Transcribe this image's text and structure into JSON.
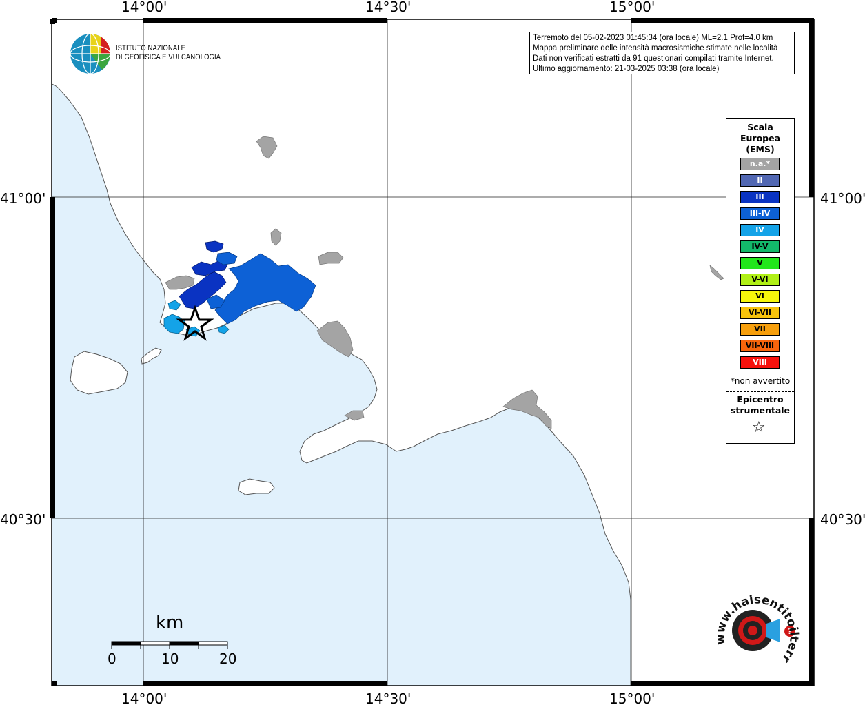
{
  "map": {
    "lon_labels": [
      "14°00'",
      "14°30'",
      "15°00'"
    ],
    "lat_labels": [
      "41°00'",
      "40°30'"
    ],
    "colors": {
      "sea": "#e1f1fc",
      "land": "#ffffff",
      "na": "#a4a4a4",
      "intensity_II": "#5167b3",
      "intensity_III": "#0a33c2",
      "intensity_III_IV": "#0d61d6",
      "intensity_IV": "#14a3e8"
    }
  },
  "logo": {
    "name_line1": "ISTITUTO NAZIONALE",
    "name_line2": "DI GEOFISICA E VULCANOLOGIA",
    "icon": "ingv-globe-icon"
  },
  "info": {
    "line1": "Terremoto del 05-02-2023 01:45:34 (ora locale) ML=2.1 Prof=4.0 km",
    "line2": "Mappa preliminare delle intensità macrosismiche stimate nelle località",
    "line3": "Dati non verificati estratti da 91 questionari compilati tramite Internet.",
    "line4": "Ultimo aggiornamento: 21-03-2025 03:38 (ora locale)"
  },
  "legend": {
    "title_line1": "Scala",
    "title_line2": "Europea",
    "title_line3": "(EMS)",
    "items": [
      {
        "label": "n.a.*",
        "color": "#a4a4a4",
        "text_color": "#ffffff"
      },
      {
        "label": "II",
        "color": "#5167b3",
        "text_color": "#ffffff"
      },
      {
        "label": "III",
        "color": "#0a33c2",
        "text_color": "#ffffff"
      },
      {
        "label": "III-IV",
        "color": "#0d61d6",
        "text_color": "#ffffff"
      },
      {
        "label": "IV",
        "color": "#14a3e8",
        "text_color": "#ffffff"
      },
      {
        "label": "IV-V",
        "color": "#13b86a",
        "text_color": "#000000"
      },
      {
        "label": "V",
        "color": "#22e61b",
        "text_color": "#000000"
      },
      {
        "label": "V-VI",
        "color": "#b0f016",
        "text_color": "#000000"
      },
      {
        "label": "VI",
        "color": "#f7f70c",
        "text_color": "#000000"
      },
      {
        "label": "VI-VII",
        "color": "#f7c30c",
        "text_color": "#000000"
      },
      {
        "label": "VII",
        "color": "#f79f0c",
        "text_color": "#000000"
      },
      {
        "label": "VII-VIII",
        "color": "#f7650c",
        "text_color": "#000000"
      },
      {
        "label": "VIII",
        "color": "#f7110c",
        "text_color": "#ffffff"
      }
    ],
    "note": "*non avvertito",
    "epicenter_line1": "Epicentro",
    "epicenter_line2": "strumentale",
    "epicenter_icon": "star-outline-icon"
  },
  "scale_bar": {
    "unit": "km",
    "ticks": [
      "0",
      "10",
      "20"
    ]
  },
  "watermark": {
    "text": "www.haisentitoilterremoto.it",
    "icon": "haisentito-target-logo-icon"
  }
}
